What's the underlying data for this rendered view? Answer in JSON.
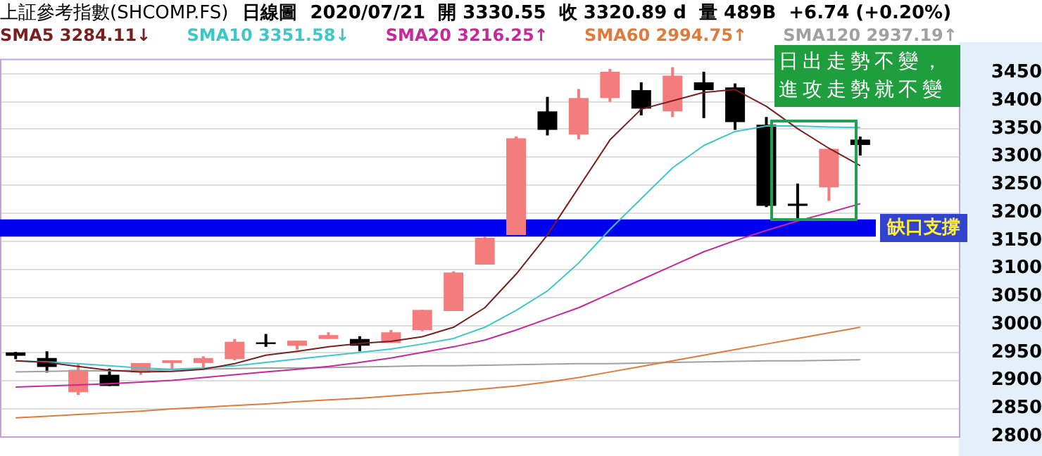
{
  "chart_data": {
    "type": "candlestick",
    "title": "上証參考指數(SHCOMP.FS)",
    "subtitle": "日線圖  2020/07/21  開 3330.55  收 3320.89 d  量 489B  +6.74 (+0.20%)",
    "categories": [
      null,
      null,
      null,
      null,
      null,
      null,
      null,
      null,
      null,
      null,
      null,
      null,
      null,
      null,
      null,
      null,
      null,
      null,
      null,
      null,
      null,
      null,
      null,
      null,
      null,
      null,
      null,
      null
    ],
    "ohlc": [
      [
        2950,
        2951,
        2938,
        2944
      ],
      [
        2940,
        2952,
        2914,
        2924
      ],
      [
        2879,
        2929,
        2874,
        2919
      ],
      [
        2910,
        2921,
        2890,
        2890
      ],
      [
        2914,
        2931,
        2910,
        2931
      ],
      [
        2931,
        2936,
        2919,
        2936
      ],
      [
        2931,
        2943,
        2919,
        2940
      ],
      [
        2938,
        2974,
        2936,
        2969
      ],
      [
        2968,
        2983,
        2960,
        2965
      ],
      [
        2962,
        2971,
        2955,
        2971
      ],
      [
        2974,
        2986,
        2974,
        2981
      ],
      [
        2974,
        2979,
        2952,
        2962
      ],
      [
        2967,
        2990,
        2967,
        2986
      ],
      [
        2990,
        3026,
        2988,
        3026
      ],
      [
        3024,
        3095,
        3024,
        3093
      ],
      [
        3107,
        3157,
        3107,
        3155
      ],
      [
        3160,
        3336,
        3160,
        3333
      ],
      [
        3381,
        3407,
        3338,
        3348
      ],
      [
        3340,
        3421,
        3331,
        3405
      ],
      [
        3405,
        3457,
        3398,
        3452
      ],
      [
        3419,
        3433,
        3374,
        3386
      ],
      [
        3381,
        3460,
        3371,
        3445
      ],
      [
        3433,
        3452,
        3369,
        3419
      ],
      [
        3424,
        3431,
        3348,
        3362
      ],
      [
        3357,
        3371,
        3210,
        3212
      ],
      [
        3216,
        3252,
        3183,
        3212
      ],
      [
        3245,
        3314,
        3221,
        3314
      ],
      [
        3330.55,
        3336,
        3302,
        3320.89
      ]
    ],
    "colors": [
      "#000000",
      "#000000",
      "#f47c7c",
      "#000000",
      "#f47c7c",
      "#f47c7c",
      "#f47c7c",
      "#f47c7c",
      "#000000",
      "#f47c7c",
      "#f47c7c",
      "#000000",
      "#f47c7c",
      "#f47c7c",
      "#f47c7c",
      "#f47c7c",
      "#f47c7c",
      "#000000",
      "#f47c7c",
      "#f47c7c",
      "#000000",
      "#f47c7c",
      "#000000",
      "#000000",
      "#000000",
      "#000000",
      "#f47c7c",
      "#000000"
    ],
    "series": [
      {
        "name": "SMA5 3284.11↓",
        "type": "line",
        "color": "#7a1f1f",
        "values": [
          2935,
          2932,
          2925,
          2918,
          2915,
          2916,
          2920,
          2930,
          2945,
          2952,
          2960,
          2966,
          2970,
          2978,
          2995,
          3030,
          3090,
          3160,
          3245,
          3330,
          3385,
          3400,
          3415,
          3420,
          3390,
          3350,
          3315,
          3284
        ]
      },
      {
        "name": "SMA10 3351.58↓",
        "type": "line",
        "color": "#3cc8c8",
        "values": [
          2935,
          2933,
          2930,
          2926,
          2922,
          2920,
          2922,
          2926,
          2932,
          2938,
          2944,
          2950,
          2956,
          2965,
          2975,
          2995,
          3025,
          3060,
          3110,
          3170,
          3225,
          3280,
          3320,
          3345,
          3355,
          3355,
          3353,
          3352
        ]
      },
      {
        "name": "SMA20 3216.25↑",
        "type": "line",
        "color": "#c8289a",
        "values": [
          2888,
          2890,
          2892,
          2894,
          2897,
          2900,
          2905,
          2910,
          2915,
          2920,
          2925,
          2932,
          2940,
          2950,
          2960,
          2972,
          2990,
          3010,
          3030,
          3055,
          3080,
          3105,
          3130,
          3150,
          3168,
          3185,
          3200,
          3216
        ]
      },
      {
        "name": "SMA60 2994.75↑",
        "type": "line",
        "color": "#e07a3a",
        "values": [
          2833,
          2836,
          2839,
          2842,
          2845,
          2849,
          2852,
          2855,
          2858,
          2862,
          2865,
          2868,
          2872,
          2876,
          2880,
          2885,
          2890,
          2897,
          2905,
          2915,
          2925,
          2935,
          2945,
          2955,
          2965,
          2975,
          2985,
          2995
        ]
      },
      {
        "name": "SMA120 2937.19↑",
        "type": "line",
        "color": "#a0a0a0",
        "values": [
          2915,
          2916,
          2917,
          2917,
          2918,
          2919,
          2920,
          2921,
          2922,
          2922,
          2923,
          2924,
          2925,
          2926,
          2926,
          2927,
          2928,
          2929,
          2930,
          2930,
          2931,
          2932,
          2933,
          2934,
          2935,
          2935,
          2936,
          2937
        ]
      }
    ],
    "ylim": [
      2800,
      3475
    ],
    "yticks": [
      2800,
      2850,
      2900,
      2950,
      3000,
      3050,
      3100,
      3150,
      3200,
      3250,
      3300,
      3350,
      3400,
      3450
    ],
    "tick_labels": "y",
    "grid": "y",
    "legend": "top",
    "marker": "none",
    "bands": [
      {
        "axis": "y",
        "from": 3157,
        "to": 3188,
        "label": "缺口支撐",
        "color": "#0000ee"
      }
    ],
    "annotations": [
      "日出走勢不變，進攻走勢就不變"
    ]
  }
}
